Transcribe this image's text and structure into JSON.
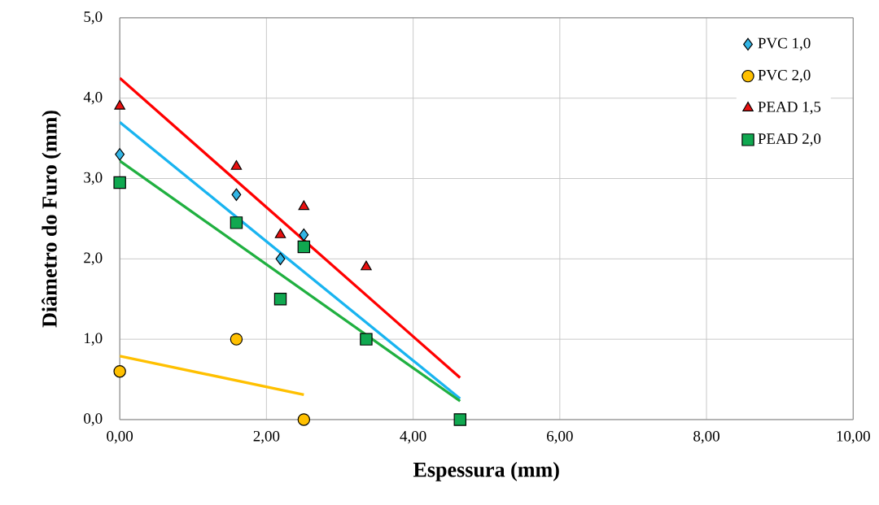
{
  "chart_data": {
    "type": "scatter",
    "xlabel": "Espessura (mm)",
    "ylabel": "Diâmetro do Furo (mm)",
    "xlim": [
      0,
      10
    ],
    "ylim": [
      0,
      5
    ],
    "xticks": [
      {
        "value": 0,
        "label": "0,00"
      },
      {
        "value": 2,
        "label": "2,00"
      },
      {
        "value": 4,
        "label": "4,00"
      },
      {
        "value": 6,
        "label": "6,00"
      },
      {
        "value": 8,
        "label": "8,00"
      },
      {
        "value": 10,
        "label": "10,00"
      }
    ],
    "yticks": [
      {
        "value": 0,
        "label": "0,0"
      },
      {
        "value": 1,
        "label": "1,0"
      },
      {
        "value": 2,
        "label": "2,0"
      },
      {
        "value": 3,
        "label": "3,0"
      },
      {
        "value": 4,
        "label": "4,0"
      },
      {
        "value": 5,
        "label": "5,0"
      }
    ],
    "grid": true,
    "legend": "top right",
    "series": [
      {
        "name": "PVC 1,0",
        "marker": "diamond",
        "color": "#33b5e5",
        "x": [
          0,
          1.59,
          2.19,
          2.51
        ],
        "values": [
          3.3,
          2.8,
          2.0,
          2.3
        ]
      },
      {
        "name": "PVC 2,0",
        "marker": "circle",
        "color": "#ffc000",
        "x": [
          0,
          1.59,
          2.51
        ],
        "values": [
          0.6,
          1.0,
          0
        ]
      },
      {
        "name": "PEAD 1,5",
        "marker": "triangle",
        "color": "#e81010",
        "x": [
          0,
          1.59,
          2.19,
          2.51,
          3.36
        ],
        "values": [
          3.9,
          3.15,
          2.3,
          2.65,
          1.9
        ]
      },
      {
        "name": "PEAD 2,0",
        "marker": "square",
        "color": "#10a850",
        "x": [
          0,
          1.59,
          2.19,
          2.51,
          3.36,
          4.64
        ],
        "values": [
          2.95,
          2.45,
          1.5,
          2.15,
          1.0,
          0
        ]
      },
      {
        "type": "line",
        "color": "#ff0000",
        "x": [
          0,
          4.64
        ],
        "values": [
          4.25,
          0.52
        ]
      },
      {
        "type": "line",
        "color": "#19b4f0",
        "x": [
          0,
          4.64
        ],
        "values": [
          3.7,
          0.26
        ]
      },
      {
        "type": "line",
        "color": "#20b040",
        "x": [
          0,
          4.64
        ],
        "values": [
          3.22,
          0.23
        ]
      },
      {
        "type": "line",
        "color": "#ffc000",
        "x": [
          0,
          2.51
        ],
        "values": [
          0.79,
          0.31
        ]
      }
    ]
  }
}
